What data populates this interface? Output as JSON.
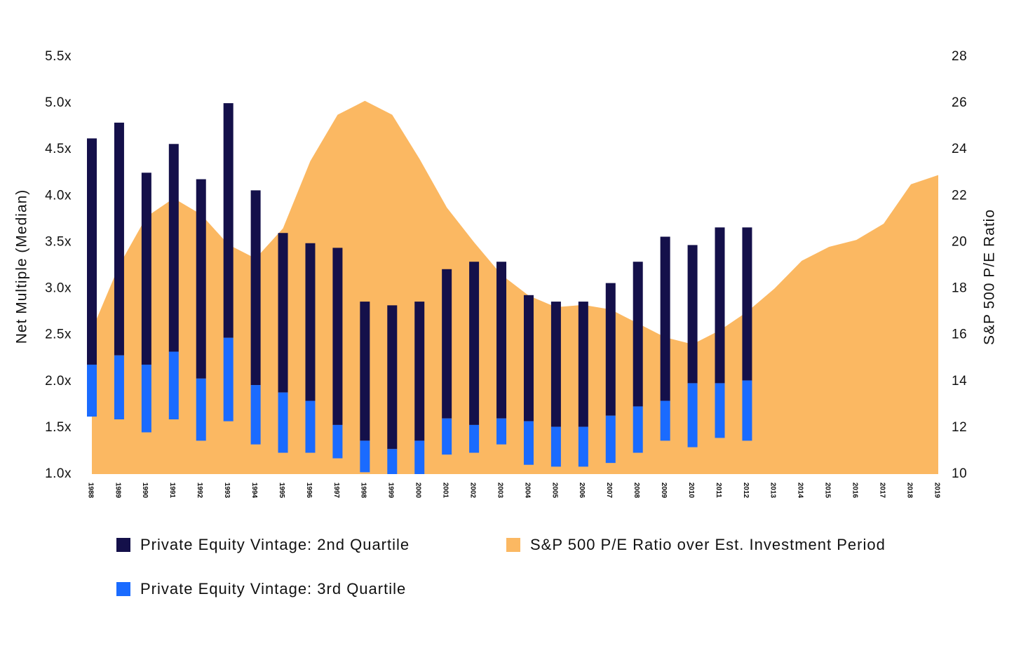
{
  "chart_data": {
    "type": "range-bar-area",
    "ylabel": "Net Multiple (Median)",
    "y2label": "S&P 500 P/E Ratio",
    "categories": [
      "1988",
      "1989",
      "1990",
      "1991",
      "1992",
      "1993",
      "1994",
      "1995",
      "1996",
      "1997",
      "1998",
      "1999",
      "2000",
      "2001",
      "2002",
      "2003",
      "2004",
      "2005",
      "2006",
      "2007",
      "2008",
      "2009",
      "2010",
      "2011",
      "2012",
      "2013",
      "2014",
      "2015",
      "2016",
      "2017",
      "2018",
      "2019"
    ],
    "ylim": [
      1.0,
      5.5
    ],
    "yticks": [
      {
        "value": 1.0,
        "label": "1.0x"
      },
      {
        "value": 1.5,
        "label": "1.5x"
      },
      {
        "value": 2.0,
        "label": "2.0x"
      },
      {
        "value": 2.5,
        "label": "2.5x"
      },
      {
        "value": 3.0,
        "label": "3.0x"
      },
      {
        "value": 3.5,
        "label": "3.5x"
      },
      {
        "value": 4.0,
        "label": "4.0x"
      },
      {
        "value": 4.5,
        "label": "4.5x"
      },
      {
        "value": 5.0,
        "label": "5.0x"
      },
      {
        "value": 5.5,
        "label": "5.5x"
      }
    ],
    "y2lim": [
      10,
      28
    ],
    "y2ticks": [
      10,
      12,
      14,
      16,
      18,
      20,
      22,
      24,
      26,
      28
    ],
    "series": [
      {
        "name": "Private Equity Vintage: 2nd Quartile",
        "color": "#14104a",
        "kind": "range",
        "values": [
          [
            2.18,
            4.62
          ],
          [
            2.28,
            4.79
          ],
          [
            2.18,
            4.25
          ],
          [
            2.32,
            4.56
          ],
          [
            2.03,
            4.18
          ],
          [
            2.47,
            5.0
          ],
          [
            1.96,
            4.06
          ],
          [
            1.88,
            3.6
          ],
          [
            1.79,
            3.49
          ],
          [
            1.53,
            3.44
          ],
          [
            1.36,
            2.86
          ],
          [
            1.27,
            2.82
          ],
          [
            1.36,
            2.86
          ],
          [
            1.6,
            3.21
          ],
          [
            1.53,
            3.29
          ],
          [
            1.6,
            3.29
          ],
          [
            1.57,
            2.93
          ],
          [
            1.51,
            2.86
          ],
          [
            1.51,
            2.86
          ],
          [
            1.63,
            3.06
          ],
          [
            1.73,
            3.29
          ],
          [
            1.79,
            3.56
          ],
          [
            1.98,
            3.47
          ],
          [
            1.98,
            3.66
          ],
          [
            2.01,
            3.66
          ],
          null,
          null,
          null,
          null,
          null,
          null,
          null
        ]
      },
      {
        "name": "S&P 500 P/E Ratio over Est. Investment Period",
        "color": "#fbb862",
        "kind": "area",
        "axis": "y2",
        "values": [
          16.2,
          19.0,
          21.1,
          21.9,
          21.2,
          19.9,
          19.3,
          20.6,
          23.5,
          25.5,
          26.1,
          25.5,
          23.6,
          21.5,
          20.0,
          18.6,
          17.7,
          17.2,
          17.3,
          17.1,
          16.5,
          15.9,
          15.6,
          16.2,
          17.0,
          18.0,
          19.2,
          19.8,
          20.1,
          20.8,
          22.5,
          22.9
        ]
      },
      {
        "name": "Private Equity Vintage: 3rd Quartile",
        "color": "#1a6bff",
        "kind": "range",
        "values": [
          [
            1.62,
            2.18
          ],
          [
            1.59,
            2.28
          ],
          [
            1.45,
            2.18
          ],
          [
            1.59,
            2.32
          ],
          [
            1.36,
            2.03
          ],
          [
            1.57,
            2.47
          ],
          [
            1.32,
            1.96
          ],
          [
            1.23,
            1.88
          ],
          [
            1.23,
            1.79
          ],
          [
            1.17,
            1.53
          ],
          [
            1.02,
            1.36
          ],
          [
            1.0,
            1.27
          ],
          [
            1.0,
            1.36
          ],
          [
            1.21,
            1.6
          ],
          [
            1.23,
            1.53
          ],
          [
            1.32,
            1.6
          ],
          [
            1.1,
            1.57
          ],
          [
            1.08,
            1.51
          ],
          [
            1.08,
            1.51
          ],
          [
            1.12,
            1.63
          ],
          [
            1.23,
            1.73
          ],
          [
            1.36,
            1.79
          ],
          [
            1.29,
            1.98
          ],
          [
            1.39,
            1.98
          ],
          [
            1.36,
            2.01
          ],
          null,
          null,
          null,
          null,
          null,
          null,
          null
        ]
      }
    ]
  }
}
